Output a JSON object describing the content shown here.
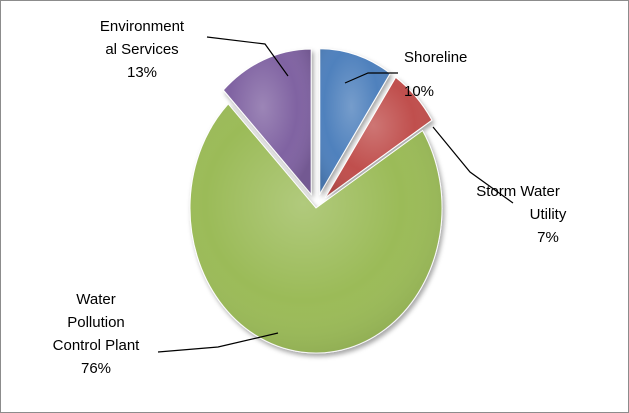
{
  "chart_data": {
    "type": "pie",
    "title": "",
    "slices": [
      {
        "label_lines": [
          "Shoreline"
        ],
        "percent_text": "10%",
        "value": 10,
        "color": "#4f81bd",
        "exploded": true
      },
      {
        "label_lines": [
          "Storm Water",
          "Utility"
        ],
        "percent_text": "7%",
        "value": 7,
        "color": "#c0504d",
        "exploded": true
      },
      {
        "label_lines": [
          "Water",
          "Pollution",
          "Control Plant"
        ],
        "percent_text": "76%",
        "value": 76,
        "color": "#9bbb59",
        "exploded": false
      },
      {
        "label_lines": [
          "Environment",
          "al Services"
        ],
        "percent_text": "13%",
        "value": 13,
        "color": "#8064a2",
        "exploded": true
      }
    ],
    "legend": "none",
    "data_labels": "outside with leader lines"
  }
}
